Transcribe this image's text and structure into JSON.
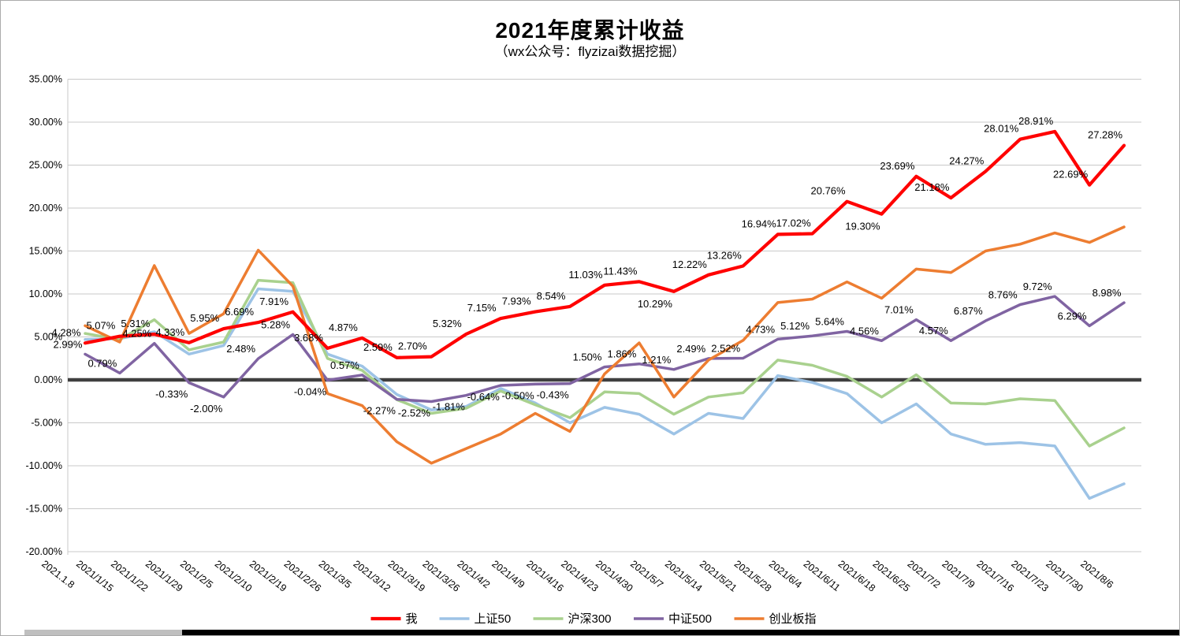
{
  "title": "2021年度累计收益",
  "subtitle": "（wx公众号：flyzizai数据挖掘）",
  "chart_data": {
    "type": "line",
    "x": [
      "2021.1.8",
      "2021/1/15",
      "2021/1/22",
      "2021/1/29",
      "2021/2/5",
      "2021/2/10",
      "2021/2/19",
      "2021/2/26",
      "2021/3/5",
      "2021/3/12",
      "2021/3/19",
      "2021/3/26",
      "2021/4/2",
      "2021/4/9",
      "2021/4/16",
      "2021/4/23",
      "2021/4/30",
      "2021/5/7",
      "2021/5/14",
      "2021/5/21",
      "2021/5/28",
      "2021/6/4",
      "2021/6/11",
      "2021/6/18",
      "2021/6/25",
      "2021/7/2",
      "2021/7/9",
      "2021/7/16",
      "2021/7/23",
      "2021/7/30",
      "2021/8/6"
    ],
    "series": [
      {
        "name": "上证50",
        "color": "#9DC3E6",
        "line_width": 3.5,
        "labeled": false,
        "values": [
          4.7,
          4.8,
          5.6,
          3.0,
          4.0,
          10.6,
          10.3,
          3.0,
          1.6,
          -1.7,
          -3.5,
          -3.1,
          -1.0,
          -2.7,
          -5.0,
          -3.2,
          -4.0,
          -6.3,
          -3.9,
          -4.5,
          0.5,
          -0.3,
          -1.6,
          -5.0,
          -2.8,
          -6.3,
          -7.5,
          -7.3,
          -7.7,
          -13.8,
          -12.1
        ]
      },
      {
        "name": "沪深300",
        "color": "#A9D18E",
        "line_width": 3.5,
        "labeled": false,
        "values": [
          5.4,
          4.7,
          7.0,
          3.5,
          4.4,
          11.6,
          11.3,
          2.5,
          1.1,
          -2.3,
          -3.9,
          -3.3,
          -1.3,
          -2.9,
          -4.4,
          -1.4,
          -1.6,
          -4.0,
          -2.0,
          -1.5,
          2.3,
          1.7,
          0.4,
          -2.0,
          0.6,
          -2.7,
          -2.8,
          -2.2,
          -2.4,
          -7.7,
          -5.6
        ]
      },
      {
        "name": "中证500",
        "color": "#8064A2",
        "line_width": 3.5,
        "labeled": true,
        "values": [
          2.99,
          0.79,
          4.25,
          -0.33,
          -2.0,
          2.48,
          5.28,
          -0.04,
          0.57,
          -2.27,
          -2.52,
          -1.81,
          -0.64,
          -0.5,
          -0.43,
          1.5,
          1.86,
          1.21,
          2.49,
          2.52,
          4.73,
          5.12,
          5.64,
          4.56,
          7.01,
          4.57,
          6.87,
          8.76,
          9.72,
          6.29,
          8.98
        ]
      },
      {
        "name": "创业板指",
        "color": "#ED7D31",
        "line_width": 3.5,
        "labeled": false,
        "values": [
          6.3,
          4.4,
          13.3,
          5.4,
          7.7,
          15.1,
          10.9,
          -1.6,
          -3.0,
          -7.2,
          -9.7,
          -8.0,
          -6.3,
          -3.9,
          -6.0,
          0.7,
          4.3,
          -2.0,
          2.3,
          4.6,
          9.0,
          9.4,
          11.4,
          9.5,
          12.9,
          12.5,
          15.0,
          15.8,
          17.1,
          16.0,
          17.8
        ]
      },
      {
        "name": "我",
        "color": "#FF0000",
        "line_width": 4.2,
        "labeled": true,
        "label_below_indices": [
          17,
          23
        ],
        "values": [
          4.28,
          5.07,
          5.31,
          4.33,
          5.95,
          6.69,
          7.91,
          3.68,
          4.87,
          2.59,
          2.7,
          5.32,
          7.15,
          7.93,
          8.54,
          11.03,
          11.43,
          10.29,
          12.22,
          13.26,
          16.94,
          17.02,
          20.76,
          19.3,
          23.69,
          21.18,
          24.27,
          28.01,
          28.91,
          22.69,
          27.28
        ]
      }
    ],
    "legend_order": [
      "我",
      "上证50",
      "沪深300",
      "中证500",
      "创业板指"
    ],
    "ylim": [
      -20,
      35
    ],
    "ytick_step": 5,
    "ytick_format": "0.00%",
    "label_format": "0.00%",
    "grid": true,
    "legend_position": "bottom"
  }
}
